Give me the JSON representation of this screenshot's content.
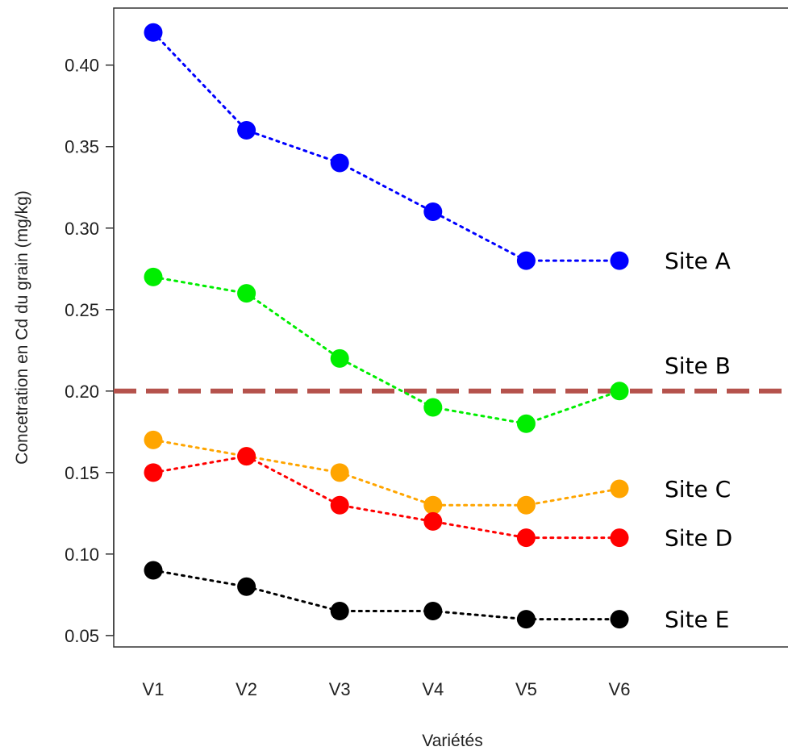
{
  "chart_data": {
    "type": "line",
    "title": "",
    "xlabel": "Variétés",
    "ylabel": "Concetration en Cd du grain (mg/kg)",
    "categories": [
      "V1",
      "V2",
      "V3",
      "V4",
      "V5",
      "V6"
    ],
    "y_ticks": [
      "0.05",
      "0.10",
      "0.15",
      "0.20",
      "0.25",
      "0.30",
      "0.35",
      "0.40"
    ],
    "ylim": [
      0.043,
      0.435
    ],
    "grid": false,
    "threshold": {
      "value": 0.2,
      "color": "#b5524c",
      "style": "dashed"
    },
    "series": [
      {
        "name": "Site A",
        "color": "#0000ff",
        "values": [
          0.42,
          0.36,
          0.34,
          0.31,
          0.28,
          0.28
        ]
      },
      {
        "name": "Site B",
        "color": "#00ee00",
        "values": [
          0.27,
          0.26,
          0.22,
          0.19,
          0.18,
          0.2
        ]
      },
      {
        "name": "Site C",
        "color": "#ffa500",
        "values": [
          0.17,
          0.16,
          0.15,
          0.13,
          0.13,
          0.14
        ]
      },
      {
        "name": "Site D",
        "color": "#ff0000",
        "values": [
          0.15,
          0.16,
          0.13,
          0.12,
          0.11,
          0.11
        ]
      },
      {
        "name": "Site E",
        "color": "#000000",
        "values": [
          0.09,
          0.08,
          0.065,
          0.065,
          0.06,
          0.06
        ]
      }
    ]
  }
}
